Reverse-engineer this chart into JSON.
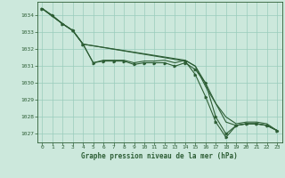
{
  "background_color": "#cce8dc",
  "grid_color": "#99ccbb",
  "line_color": "#2d5e35",
  "title": "Graphe pression niveau de la mer (hPa)",
  "xlim": [
    -0.5,
    23.5
  ],
  "ylim": [
    1026.5,
    1034.8
  ],
  "yticks": [
    1027,
    1028,
    1029,
    1030,
    1031,
    1032,
    1033,
    1034
  ],
  "xticks": [
    0,
    1,
    2,
    3,
    4,
    5,
    6,
    7,
    8,
    9,
    10,
    11,
    12,
    13,
    14,
    15,
    16,
    17,
    18,
    19,
    20,
    21,
    22,
    23
  ],
  "series1_x": [
    0,
    1,
    2,
    3,
    4,
    5,
    6,
    7,
    8,
    9,
    10,
    11,
    12,
    13,
    14,
    15,
    16,
    17,
    18,
    19,
    20,
    21,
    22,
    23
  ],
  "series1_y": [
    1034.4,
    1034.0,
    1033.5,
    1033.1,
    1032.3,
    1031.2,
    1031.3,
    1031.3,
    1031.3,
    1031.1,
    1031.2,
    1031.2,
    1031.2,
    1031.0,
    1031.2,
    1030.8,
    1030.0,
    1028.0,
    1027.0,
    1027.5,
    1027.6,
    1027.6,
    1027.5,
    1027.2
  ],
  "series2_x": [
    0,
    2,
    3,
    4,
    5,
    6,
    7,
    8,
    9,
    10,
    11,
    12,
    13,
    14,
    15,
    16,
    17,
    18,
    19,
    20,
    21,
    22,
    23
  ],
  "series2_y": [
    1034.4,
    1033.5,
    1033.1,
    1032.3,
    1031.2,
    1031.35,
    1031.35,
    1031.35,
    1031.2,
    1031.3,
    1031.3,
    1031.35,
    1031.2,
    1031.35,
    1031.0,
    1030.0,
    1028.8,
    1028.0,
    1027.6,
    1027.7,
    1027.7,
    1027.6,
    1027.2
  ],
  "series3_x": [
    0,
    2,
    3,
    4,
    14,
    15,
    16,
    17,
    18,
    19,
    20,
    21,
    22,
    23
  ],
  "series3_y": [
    1034.4,
    1033.5,
    1033.1,
    1032.3,
    1031.35,
    1031.0,
    1029.8,
    1028.8,
    1027.7,
    1027.5,
    1027.6,
    1027.6,
    1027.5,
    1027.2
  ],
  "series4_x": [
    0,
    2,
    3,
    4,
    14,
    15,
    16,
    17,
    18,
    19,
    20,
    21,
    22,
    23
  ],
  "series4_y": [
    1034.4,
    1033.5,
    1033.1,
    1032.3,
    1031.3,
    1030.5,
    1029.2,
    1027.7,
    1026.8,
    1027.5,
    1027.6,
    1027.6,
    1027.5,
    1027.2
  ]
}
